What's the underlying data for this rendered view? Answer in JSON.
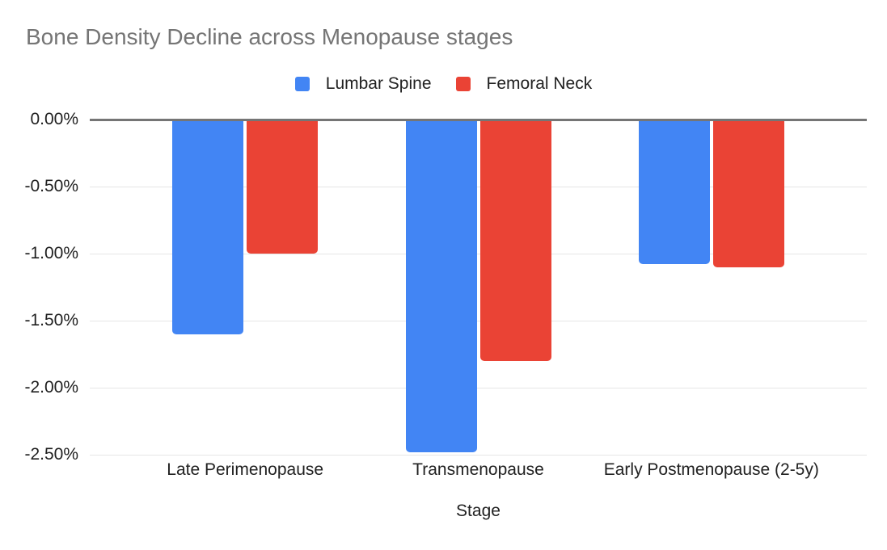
{
  "chart_data": {
    "type": "bar",
    "title": "Bone Density Decline across Menopause stages",
    "categories": [
      "Late Perimenopause",
      "Transmenopause",
      "Early Postmenopause (2-5y)"
    ],
    "series": [
      {
        "name": "Lumbar Spine",
        "color": "#4285F4",
        "values": [
          -1.6,
          -2.48,
          -1.08
        ]
      },
      {
        "name": "Femoral Neck",
        "color": "#EA4335",
        "values": [
          -1.0,
          -1.8,
          -1.1
        ]
      }
    ],
    "xlabel": "Stage",
    "ylabel": "",
    "ylim": [
      -2.5,
      0
    ],
    "yticks": [
      "0.00%",
      "-0.50%",
      "-1.00%",
      "-1.50%",
      "-2.00%",
      "-2.50%"
    ],
    "ytick_values": [
      0,
      -0.5,
      -1.0,
      -1.5,
      -2.0,
      -2.5
    ],
    "grid": true,
    "legend_position": "top"
  },
  "colors": {
    "background": "#ffffff",
    "title_text": "#757575",
    "axis_text": "#212121",
    "gridline": "#e6e6e6",
    "zero_baseline": "#757575"
  }
}
